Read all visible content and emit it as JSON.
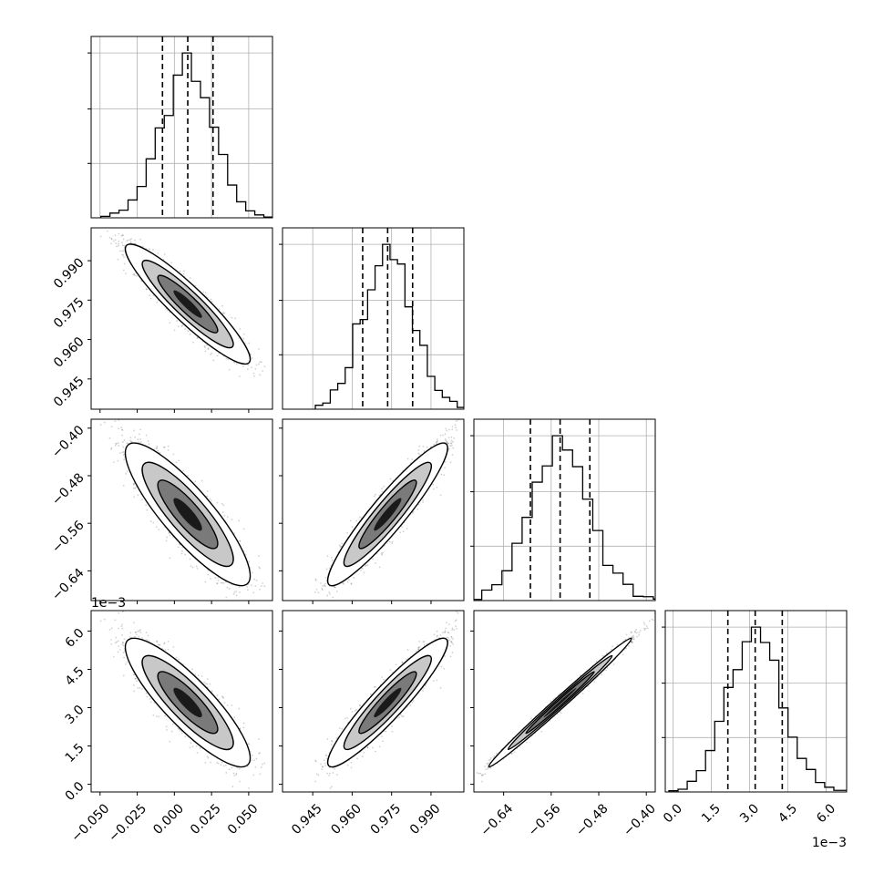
{
  "chart_data": {
    "type": "corner",
    "parameters": 4,
    "axes": [
      {
        "min": -0.056,
        "max": 0.066,
        "ticks": [
          -0.05,
          -0.025,
          0.0,
          0.025,
          0.05
        ],
        "tick_labels": [
          "−0.050",
          "−0.025",
          "0.000",
          "0.025",
          "0.050"
        ],
        "offset_label": ""
      },
      {
        "min": 0.9335,
        "max": 1.0025,
        "ticks": [
          0.945,
          0.96,
          0.975,
          0.99
        ],
        "tick_labels": [
          "0.945",
          "0.960",
          "0.975",
          "0.990"
        ],
        "offset_label": ""
      },
      {
        "min": -0.69,
        "max": -0.385,
        "ticks": [
          -0.64,
          -0.56,
          -0.48,
          -0.4
        ],
        "tick_labels": [
          "−0.64",
          "−0.56",
          "−0.48",
          "−0.40"
        ],
        "offset_label": ""
      },
      {
        "min": -0.0003,
        "max": 0.0068,
        "ticks": [
          0.0,
          0.0015,
          0.003,
          0.0045,
          0.006
        ],
        "tick_labels": [
          "0.0",
          "1.5",
          "3.0",
          "4.5",
          "6.0"
        ],
        "offset_label": "1e−3"
      }
    ],
    "means": [
      0.009,
      0.9735,
      -0.545,
      0.0032
    ],
    "sigmas": [
      0.0175,
      0.0095,
      0.05,
      0.00105
    ],
    "correlations": [
      [
        0,
        1,
        -0.92
      ],
      [
        0,
        2,
        -0.86
      ],
      [
        0,
        3,
        -0.86
      ],
      [
        1,
        2,
        0.93
      ],
      [
        1,
        3,
        0.93
      ],
      [
        2,
        3,
        0.993
      ]
    ],
    "quantiles": [
      [
        -0.008,
        0.009,
        0.026
      ],
      [
        0.964,
        0.9735,
        0.983
      ],
      [
        -0.595,
        -0.545,
        -0.495
      ],
      [
        0.00215,
        0.00322,
        0.00428
      ]
    ],
    "histogram_bins": 20,
    "grid": true
  }
}
